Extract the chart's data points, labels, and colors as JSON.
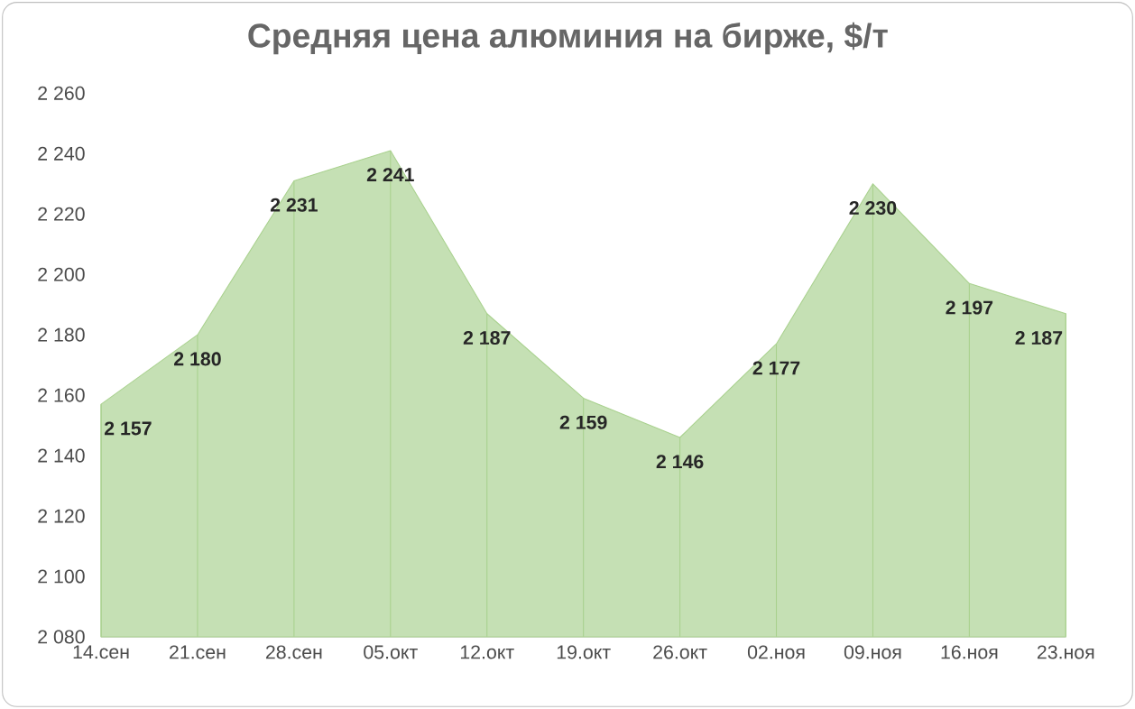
{
  "chart_data": {
    "type": "area",
    "title": "Средняя цена алюминия на бирже, $/т",
    "categories": [
      "14.сен",
      "21.сен",
      "28.сен",
      "05.окт",
      "12.окт",
      "19.окт",
      "26.окт",
      "02.ноя",
      "09.ноя",
      "16.ноя",
      "23.ноя"
    ],
    "values": [
      2157,
      2180,
      2231,
      2241,
      2187,
      2159,
      2146,
      2177,
      2230,
      2197,
      2187
    ],
    "value_labels": [
      "2 157",
      "2 180",
      "2 231",
      "2 241",
      "2 187",
      "2 159",
      "2 146",
      "2 177",
      "2 230",
      "2 197",
      "2 187"
    ],
    "color": "#c5e0b4",
    "ylim": [
      2080,
      2260
    ],
    "yticks": [
      {
        "value": 2080,
        "label": "2 080"
      },
      {
        "value": 2100,
        "label": "2 100"
      },
      {
        "value": 2120,
        "label": "2 120"
      },
      {
        "value": 2140,
        "label": "2 140"
      },
      {
        "value": 2160,
        "label": "2 160"
      },
      {
        "value": 2180,
        "label": "2 180"
      },
      {
        "value": 2200,
        "label": "2 200"
      },
      {
        "value": 2220,
        "label": "2 220"
      },
      {
        "value": 2240,
        "label": "2 240"
      },
      {
        "value": 2260,
        "label": "2 260"
      }
    ],
    "grid": "x"
  }
}
